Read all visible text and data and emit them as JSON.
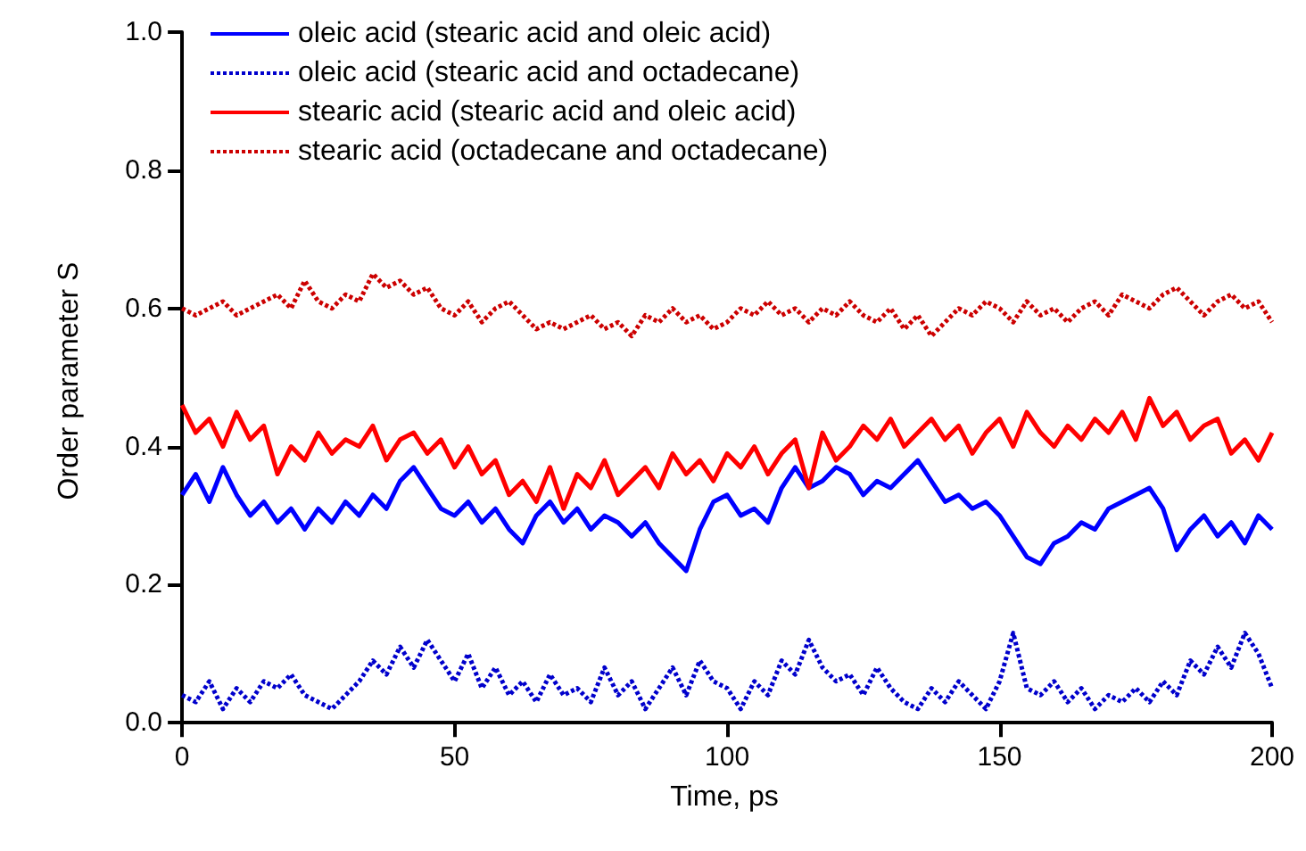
{
  "chart_data": {
    "type": "line",
    "xlabel": "Time, ps",
    "ylabel": "Order parameter S",
    "x": [
      0,
      2.5,
      5,
      7.5,
      10,
      12.5,
      15,
      17.5,
      20,
      22.5,
      25,
      27.5,
      30,
      32.5,
      35,
      37.5,
      40,
      42.5,
      45,
      47.5,
      50,
      52.5,
      55,
      57.5,
      60,
      62.5,
      65,
      67.5,
      70,
      72.5,
      75,
      77.5,
      80,
      82.5,
      85,
      87.5,
      90,
      92.5,
      95,
      97.5,
      100,
      102.5,
      105,
      107.5,
      110,
      112.5,
      115,
      117.5,
      120,
      122.5,
      125,
      127.5,
      130,
      132.5,
      135,
      137.5,
      140,
      142.5,
      145,
      147.5,
      150,
      152.5,
      155,
      157.5,
      160,
      162.5,
      165,
      167.5,
      170,
      172.5,
      175,
      177.5,
      180,
      182.5,
      185,
      187.5,
      190,
      192.5,
      195,
      197.5,
      200
    ],
    "xlim": [
      -1,
      200
    ],
    "xticks": [
      0,
      50,
      100,
      150,
      200
    ],
    "ylim": [
      -0.01,
      1.0
    ],
    "yticks": [
      {
        "value": 0,
        "label": "0.0"
      },
      {
        "value": 0.2,
        "label": "0.2"
      },
      {
        "value": 0.4,
        "label": "0.4"
      },
      {
        "value": 0.6,
        "label": "0.6"
      },
      {
        "value": 0.8,
        "label": "0.8"
      },
      {
        "value": 1,
        "label": "1.0"
      }
    ],
    "grid": false,
    "legend": "top left",
    "marker": "none",
    "series": [
      {
        "name": "oleic acid (stearic acid and oleic acid)",
        "color": "#0000ff",
        "line_style": "solid",
        "values": [
          0.33,
          0.36,
          0.32,
          0.37,
          0.33,
          0.3,
          0.32,
          0.29,
          0.31,
          0.28,
          0.31,
          0.29,
          0.32,
          0.3,
          0.33,
          0.31,
          0.35,
          0.37,
          0.34,
          0.31,
          0.3,
          0.32,
          0.29,
          0.31,
          0.28,
          0.26,
          0.3,
          0.32,
          0.29,
          0.31,
          0.28,
          0.3,
          0.29,
          0.27,
          0.29,
          0.26,
          0.24,
          0.22,
          0.28,
          0.32,
          0.33,
          0.3,
          0.31,
          0.29,
          0.34,
          0.37,
          0.34,
          0.35,
          0.37,
          0.36,
          0.33,
          0.35,
          0.34,
          0.36,
          0.38,
          0.35,
          0.32,
          0.33,
          0.31,
          0.32,
          0.3,
          0.27,
          0.24,
          0.23,
          0.26,
          0.27,
          0.29,
          0.28,
          0.31,
          0.32,
          0.33,
          0.34,
          0.31,
          0.25,
          0.28,
          0.3,
          0.27,
          0.29,
          0.26,
          0.3,
          0.28
        ]
      },
      {
        "name": "oleic acid (stearic acid and octadecane)",
        "color": "#0000cc",
        "line_style": "dotted",
        "values": [
          0.04,
          0.03,
          0.06,
          0.02,
          0.05,
          0.03,
          0.06,
          0.05,
          0.07,
          0.04,
          0.03,
          0.02,
          0.04,
          0.06,
          0.09,
          0.07,
          0.11,
          0.08,
          0.12,
          0.09,
          0.06,
          0.1,
          0.05,
          0.08,
          0.04,
          0.06,
          0.03,
          0.07,
          0.04,
          0.05,
          0.03,
          0.08,
          0.04,
          0.06,
          0.02,
          0.05,
          0.08,
          0.04,
          0.09,
          0.06,
          0.05,
          0.02,
          0.06,
          0.04,
          0.09,
          0.07,
          0.12,
          0.08,
          0.06,
          0.07,
          0.04,
          0.08,
          0.05,
          0.03,
          0.02,
          0.05,
          0.03,
          0.06,
          0.04,
          0.02,
          0.06,
          0.13,
          0.05,
          0.04,
          0.06,
          0.03,
          0.05,
          0.02,
          0.04,
          0.03,
          0.05,
          0.03,
          0.06,
          0.04,
          0.09,
          0.07,
          0.11,
          0.08,
          0.13,
          0.1,
          0.05
        ]
      },
      {
        "name": "stearic acid (stearic acid and oleic acid)",
        "color": "#ff0000",
        "line_style": "solid",
        "values": [
          0.46,
          0.42,
          0.44,
          0.4,
          0.45,
          0.41,
          0.43,
          0.36,
          0.4,
          0.38,
          0.42,
          0.39,
          0.41,
          0.4,
          0.43,
          0.38,
          0.41,
          0.42,
          0.39,
          0.41,
          0.37,
          0.4,
          0.36,
          0.38,
          0.33,
          0.35,
          0.32,
          0.37,
          0.31,
          0.36,
          0.34,
          0.38,
          0.33,
          0.35,
          0.37,
          0.34,
          0.39,
          0.36,
          0.38,
          0.35,
          0.39,
          0.37,
          0.4,
          0.36,
          0.39,
          0.41,
          0.34,
          0.42,
          0.38,
          0.4,
          0.43,
          0.41,
          0.44,
          0.4,
          0.42,
          0.44,
          0.41,
          0.43,
          0.39,
          0.42,
          0.44,
          0.4,
          0.45,
          0.42,
          0.4,
          0.43,
          0.41,
          0.44,
          0.42,
          0.45,
          0.41,
          0.47,
          0.43,
          0.45,
          0.41,
          0.43,
          0.44,
          0.39,
          0.41,
          0.38,
          0.42
        ]
      },
      {
        "name": "stearic acid (octadecane and octadecane)",
        "color": "#cc0000",
        "line_style": "dotted",
        "values": [
          0.6,
          0.59,
          0.6,
          0.61,
          0.59,
          0.6,
          0.61,
          0.62,
          0.6,
          0.64,
          0.61,
          0.6,
          0.62,
          0.61,
          0.65,
          0.63,
          0.64,
          0.62,
          0.63,
          0.6,
          0.59,
          0.61,
          0.58,
          0.6,
          0.61,
          0.59,
          0.57,
          0.58,
          0.57,
          0.58,
          0.59,
          0.57,
          0.58,
          0.56,
          0.59,
          0.58,
          0.6,
          0.58,
          0.59,
          0.57,
          0.58,
          0.6,
          0.59,
          0.61,
          0.59,
          0.6,
          0.58,
          0.6,
          0.59,
          0.61,
          0.59,
          0.58,
          0.6,
          0.57,
          0.59,
          0.56,
          0.58,
          0.6,
          0.59,
          0.61,
          0.6,
          0.58,
          0.61,
          0.59,
          0.6,
          0.58,
          0.6,
          0.61,
          0.59,
          0.62,
          0.61,
          0.6,
          0.62,
          0.63,
          0.61,
          0.59,
          0.61,
          0.62,
          0.6,
          0.61,
          0.58
        ]
      }
    ]
  }
}
